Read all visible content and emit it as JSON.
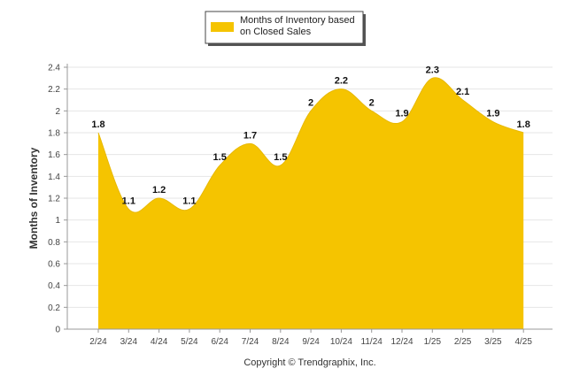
{
  "chart_data": {
    "type": "area",
    "categories": [
      "2/24",
      "3/24",
      "4/24",
      "5/24",
      "6/24",
      "7/24",
      "8/24",
      "9/24",
      "10/24",
      "11/24",
      "12/24",
      "1/25",
      "2/25",
      "3/25",
      "4/25"
    ],
    "series": [
      {
        "name": "Months of Inventory based on Closed Sales",
        "values": [
          1.8,
          1.1,
          1.2,
          1.1,
          1.5,
          1.7,
          1.5,
          2,
          2.2,
          2,
          1.9,
          2.3,
          2.1,
          1.9,
          1.8
        ],
        "data_labels": [
          "1.8",
          "1.1",
          "1.2",
          "1.1",
          "1.5",
          "1.7",
          "1.5",
          "2",
          "2.2",
          "2",
          "1.9",
          "2.3",
          "2.1",
          "1.9",
          "1.8"
        ]
      }
    ],
    "ylabel": "Months of Inventory",
    "xlabel": "",
    "ylim": [
      0,
      2.4
    ],
    "yticks": [
      "0",
      "0.2",
      "0.4",
      "0.6",
      "0.8",
      "1",
      "1.2",
      "1.4",
      "1.6",
      "1.8",
      "2",
      "2.2",
      "2.4"
    ],
    "grid": true,
    "legend_position": "top-center",
    "colors": {
      "area": "#f5c400",
      "grid": "#e6e6e6",
      "axis": "#999999"
    }
  },
  "legend": {
    "line1": "Months of Inventory based",
    "line2": "on Closed Sales"
  },
  "footer": {
    "copyright": "Copyright © Trendgraphix, Inc."
  }
}
